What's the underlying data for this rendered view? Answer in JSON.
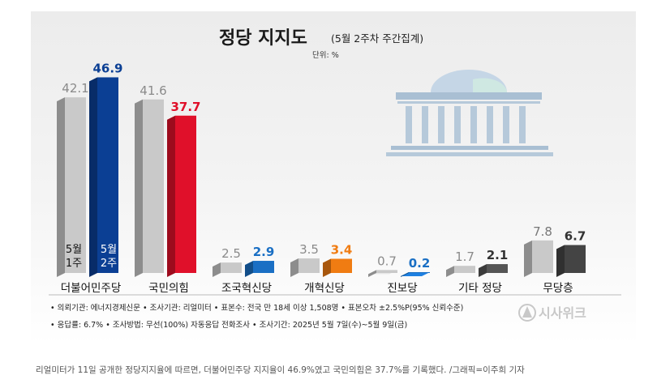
{
  "chart_data": {
    "type": "bar",
    "title": "정당 지지도",
    "subtitle": "(5월 2주차 주간집계)",
    "unit": "단위: %",
    "categories": [
      "더불어민주당",
      "국민의힘",
      "조국혁신당",
      "개혁신당",
      "진보당",
      "기타 정당",
      "무당층"
    ],
    "series": [
      {
        "name": "5월 1주",
        "values": [
          42.1,
          41.6,
          2.5,
          3.5,
          0.7,
          1.7,
          7.8
        ]
      },
      {
        "name": "5월 2주",
        "values": [
          46.9,
          37.7,
          2.9,
          3.4,
          0.2,
          2.1,
          6.7
        ]
      }
    ],
    "week_labels": {
      "w1_line1": "5월",
      "w1_line2": "1주",
      "w2_line1": "5월",
      "w2_line2": "2주"
    },
    "colors": {
      "w1": "#c9c9c9",
      "w2": [
        "#0b3f94",
        "#e0102a",
        "#1a6fc4",
        "#f07c12",
        "#1a6fc4",
        "#555555",
        "#444444"
      ],
      "w1_value": "#8a8a8a",
      "w2_value": [
        "#0b3f94",
        "#e0102a",
        "#1a6fc4",
        "#f07c12",
        "#1a6fc4",
        "#333333",
        "#333333"
      ],
      "w1_value_last": "#777777"
    },
    "ylim": [
      0,
      50
    ]
  },
  "notes": {
    "line1": "• 의뢰기관: 에너지경제신문  • 조사기관: 리얼미터  • 표본수: 전국 만 18세 이상 1,508명  • 표본오차 ±2.5%P(95% 신뢰수준)",
    "line2": "• 응답률: 6.7%  • 조사방법: 무선(100%) 자동응답 전화조사  • 조사기간: 2025년 5월 7일(수)~5월 9일(금)"
  },
  "logo": {
    "text": "시사위크",
    "icon": "sisaweek-logo-icon"
  },
  "illustration": {
    "icon": "national-assembly-building-icon"
  },
  "caption": "리얼미터가 11일 공개한 정당지지율에 따르면, 더불어민주당 지지율이 46.9%였고 국민의힘은 37.7%를 기록했다. /그래픽=이주희 기자"
}
